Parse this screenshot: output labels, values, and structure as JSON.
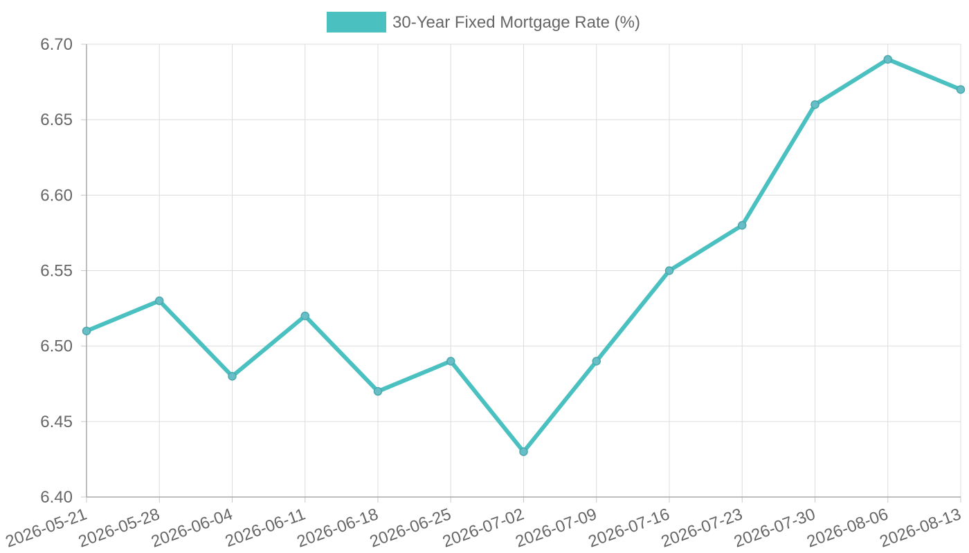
{
  "colors": {
    "series": "#4bc0c0",
    "point_fill": "#68bec6",
    "point_stroke": "#4aa8ad"
  },
  "chart_data": {
    "type": "line",
    "title": "",
    "xlabel": "",
    "ylabel": "",
    "legend_position": "top-center",
    "grid": true,
    "ylim": [
      6.4,
      6.7
    ],
    "y_ticks": [
      "6.40",
      "6.45",
      "6.50",
      "6.55",
      "6.60",
      "6.65",
      "6.70"
    ],
    "categories": [
      "2026-05-21",
      "2026-05-28",
      "2026-06-04",
      "2026-06-11",
      "2026-06-18",
      "2026-06-25",
      "2026-07-02",
      "2026-07-09",
      "2026-07-16",
      "2026-07-23",
      "2026-07-30",
      "2026-08-06",
      "2026-08-13"
    ],
    "series": [
      {
        "name": "30-Year Fixed Mortgage Rate (%)",
        "values": [
          6.51,
          6.53,
          6.48,
          6.52,
          6.47,
          6.49,
          6.43,
          6.49,
          6.55,
          6.58,
          6.66,
          6.69,
          6.67
        ]
      }
    ]
  }
}
